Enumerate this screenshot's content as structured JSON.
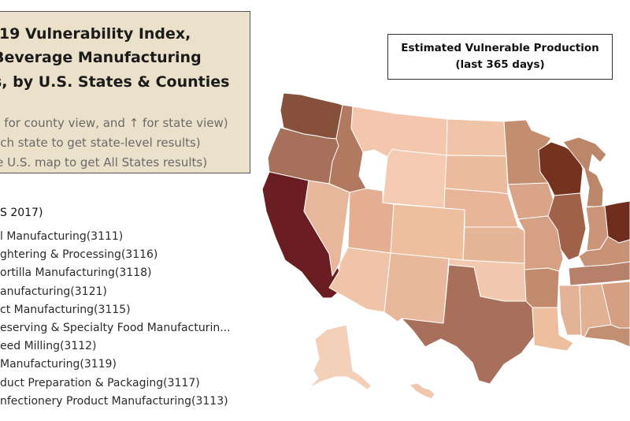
{
  "title": {
    "line1": "-19 Vulnerability Index,",
    "line2": "Beverage Manufacturing",
    "line3": "s, by U.S. States & Counties"
  },
  "hints": {
    "line1": "p for county view, and ↑ for state view)",
    "line2": "ach state to get state-level results)",
    "line3": "le U.S. map to get All States results)"
  },
  "legend": {
    "line1": "Estimated Vulnerable Production",
    "line2": "(last 365 days)"
  },
  "list": {
    "header": "S 2017)",
    "items": [
      "l Manufacturing(3111)",
      "ghtering & Processing(3116)",
      "ortilla Manufacturing(3118)",
      "anufacturing(3121)",
      "ct Manufacturing(3115)",
      "eserving & Specialty Food Manufacturin...",
      "eed Milling(3112)",
      "Manufacturing(3119)",
      "duct Preparation & Packaging(3117)",
      "nfectionery Product Manufacturing(3113)"
    ]
  },
  "map": {
    "color_scale": {
      "low": "#f5cdb4",
      "high": "#6a1e22"
    },
    "states": {
      "WA": "#86503a",
      "OR": "#a6705a",
      "CA": "#6a1e22",
      "ID": "#b17a60",
      "NV": "#e7b79c",
      "MT": "#f2c7ad",
      "WY": "#f4cbb2",
      "UT": "#e3ae92",
      "AZ": "#f0c4a9",
      "NM": "#e9b89c",
      "CO": "#eebf9f",
      "ND": "#f0c4a9",
      "SD": "#ecbb9e",
      "NE": "#e8b598",
      "KS": "#e6b497",
      "OK": "#f2c8ae",
      "TX": "#a8705a",
      "MN": "#c38d6f",
      "IA": "#d9a487",
      "MO": "#d5a083",
      "AR": "#c28b6e",
      "LA": "#eebf9f",
      "WI": "#74321f",
      "IL": "#a0604a",
      "MS": "#e4b296",
      "AL": "#e2b093",
      "TN": "#b7806a",
      "KY": "#c89277",
      "IN": "#cc9579",
      "MI": "#bb866a",
      "OH": "#6e2d1d",
      "GA": "#d49f82",
      "FL": "#c38f73",
      "AK": "#f5d0b8",
      "HI": "#f0c6ac"
    }
  }
}
